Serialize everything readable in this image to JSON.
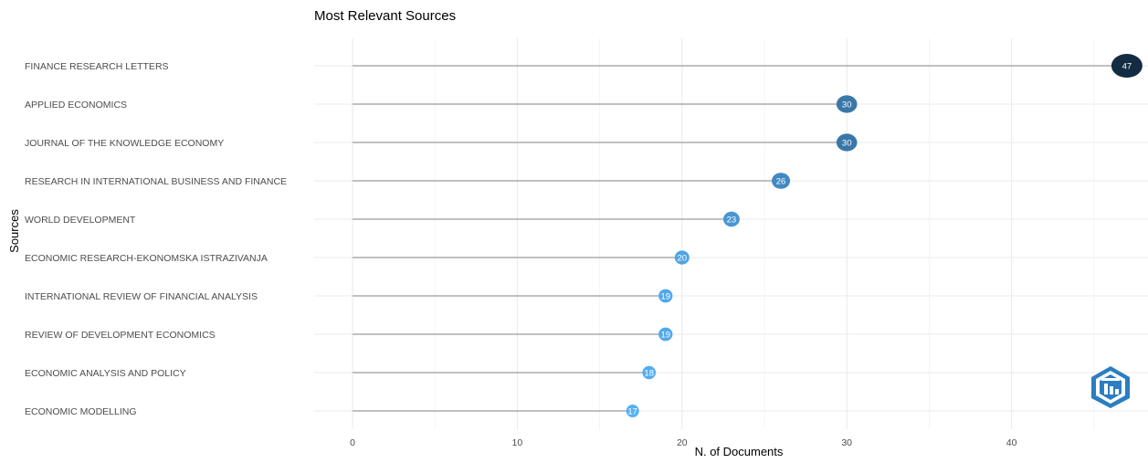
{
  "chart_data": {
    "type": "lollipop",
    "title": "Most Relevant Sources",
    "xlabel": "N. of Documents",
    "ylabel": "Sources",
    "xlim": [
      0,
      47
    ],
    "xticks": [
      0,
      10,
      20,
      30,
      40
    ],
    "grid": true,
    "legend": "none",
    "categories": [
      "FINANCE RESEARCH LETTERS",
      "APPLIED ECONOMICS",
      "JOURNAL OF THE KNOWLEDGE ECONOMY",
      "RESEARCH IN INTERNATIONAL BUSINESS AND FINANCE",
      "WORLD DEVELOPMENT",
      "ECONOMIC RESEARCH-EKONOMSKA ISTRAZIVANJA",
      "INTERNATIONAL REVIEW OF FINANCIAL ANALYSIS",
      "REVIEW OF DEVELOPMENT ECONOMICS",
      "ECONOMIC ANALYSIS AND POLICY",
      "ECONOMIC MODELLING"
    ],
    "values": [
      47,
      30,
      30,
      26,
      23,
      20,
      19,
      19,
      18,
      17
    ],
    "colors": {
      "low": "#56b1f7",
      "high": "#132b43",
      "stem": "#9a9a9a",
      "grid": "#ebebeb",
      "label": "#ffffff"
    }
  },
  "logo": {
    "name": "bibliometrix-logo",
    "colors": [
      "#2a7ec2",
      "#ffffff"
    ]
  }
}
